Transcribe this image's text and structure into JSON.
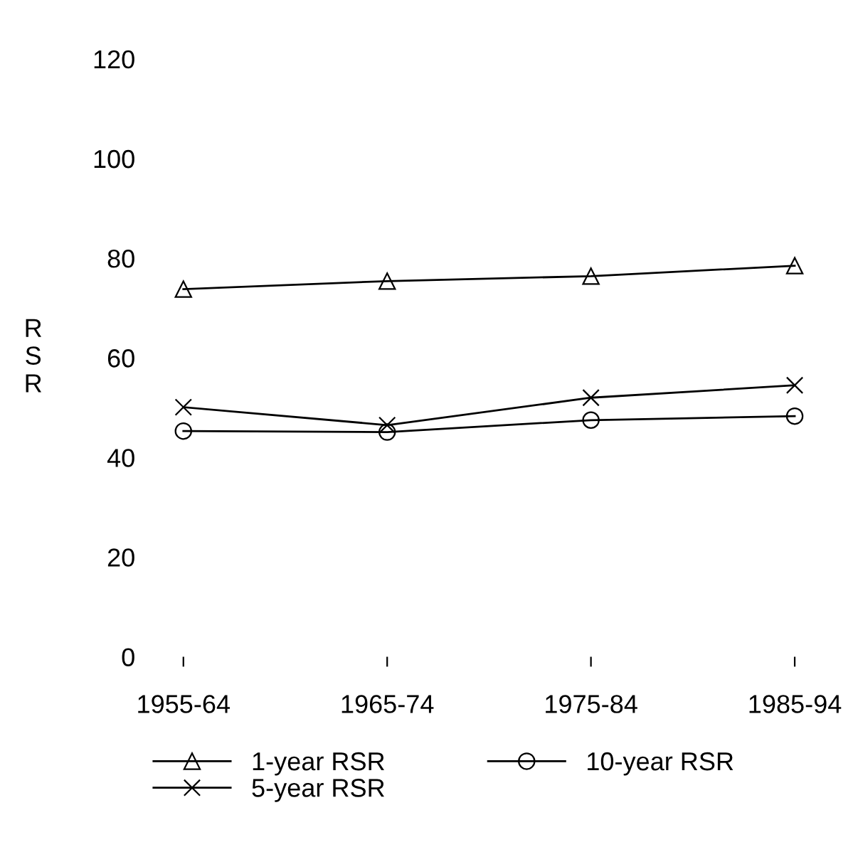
{
  "chart_data": {
    "type": "line",
    "ylabel": "R\nS\nR",
    "categories": [
      "1955-64",
      "1965-74",
      "1975-84",
      "1985-94"
    ],
    "ylim": [
      0,
      120
    ],
    "yticks": [
      0,
      20,
      40,
      60,
      80,
      100,
      120
    ],
    "grid": false,
    "legend": "bottom",
    "line_style": "solid",
    "series": [
      {
        "name": "1-year RSR",
        "color": "#000000",
        "marker": "triangle",
        "values": [
          73.8,
          75.4,
          76.4,
          78.5
        ]
      },
      {
        "name": "5-year RSR",
        "color": "#000000",
        "marker": "cross",
        "values": [
          50.1,
          46.5,
          52.0,
          54.5
        ]
      },
      {
        "name": "10-year RSR",
        "color": "#000000",
        "marker": "circle",
        "values": [
          45.3,
          45.1,
          47.5,
          48.3
        ]
      }
    ]
  }
}
